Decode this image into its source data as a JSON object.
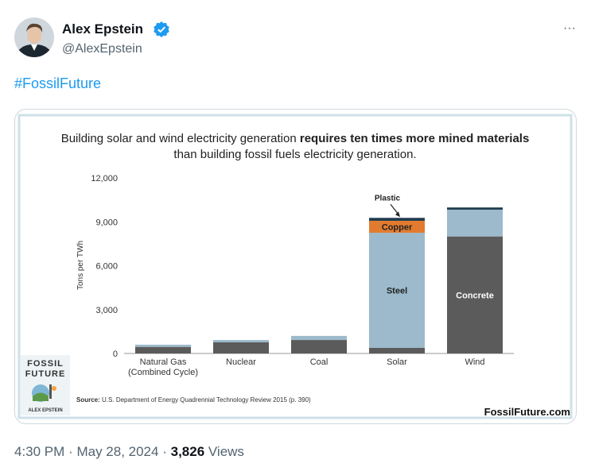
{
  "tweet": {
    "author": {
      "name": "Alex Epstein",
      "handle": "@AlexEpstein"
    },
    "menu": "···",
    "text": "#FossilFuture",
    "footer": {
      "time": "4:30 PM",
      "separator": "·",
      "date": "May 28, 2024",
      "views": "3,826",
      "views_label": "Views"
    },
    "image": {
      "chart_data": {
        "type": "stacked_bar",
        "title": [
          "Building solar and wind electricity generation ",
          "requires ten times more mined materials",
          "than building fossil fuels electricity generation."
        ],
        "y_label": "Tons per TWh",
        "categories": [
          "Natural Gas (Combined Cycle)",
          "Nuclear",
          "Coal",
          "Solar",
          "Wind"
        ],
        "series": [
          {
            "name": "Concrete",
            "color": "#5b5b5b",
            "values": [
              450,
              760,
              920,
              380,
              8000
            ]
          },
          {
            "name": "Steel",
            "color": "#9cbacb",
            "values": [
              150,
              160,
              280,
              7870,
              1830
            ]
          },
          {
            "name": "Copper",
            "color": "#e27b2f",
            "values": [
              0,
              0,
              0,
              820,
              0
            ]
          },
          {
            "name": "Plastic",
            "color": "#1f3b4d",
            "values": [
              0,
              0,
              0,
              200,
              150
            ]
          }
        ],
        "ylim": [
          0,
          12000
        ],
        "yticks": [
          0,
          {
            "value": 3000,
            "label": "3,000"
          },
          {
            "value": 6000,
            "label": "6,000"
          },
          {
            "value": 9000,
            "label": "9,000"
          },
          {
            "value": 12000,
            "label": "12,000"
          }
        ]
      },
      "source_label": "Source:",
      "source": "U.S. Department of Energy Quadrennial Technology Review 2015 (p. 390)",
      "website": "FossilFuture.com",
      "book": {
        "title_lines": [
          "FOSSIL",
          "FUTURE"
        ],
        "author": "ALEX EPSTEIN"
      }
    }
  }
}
